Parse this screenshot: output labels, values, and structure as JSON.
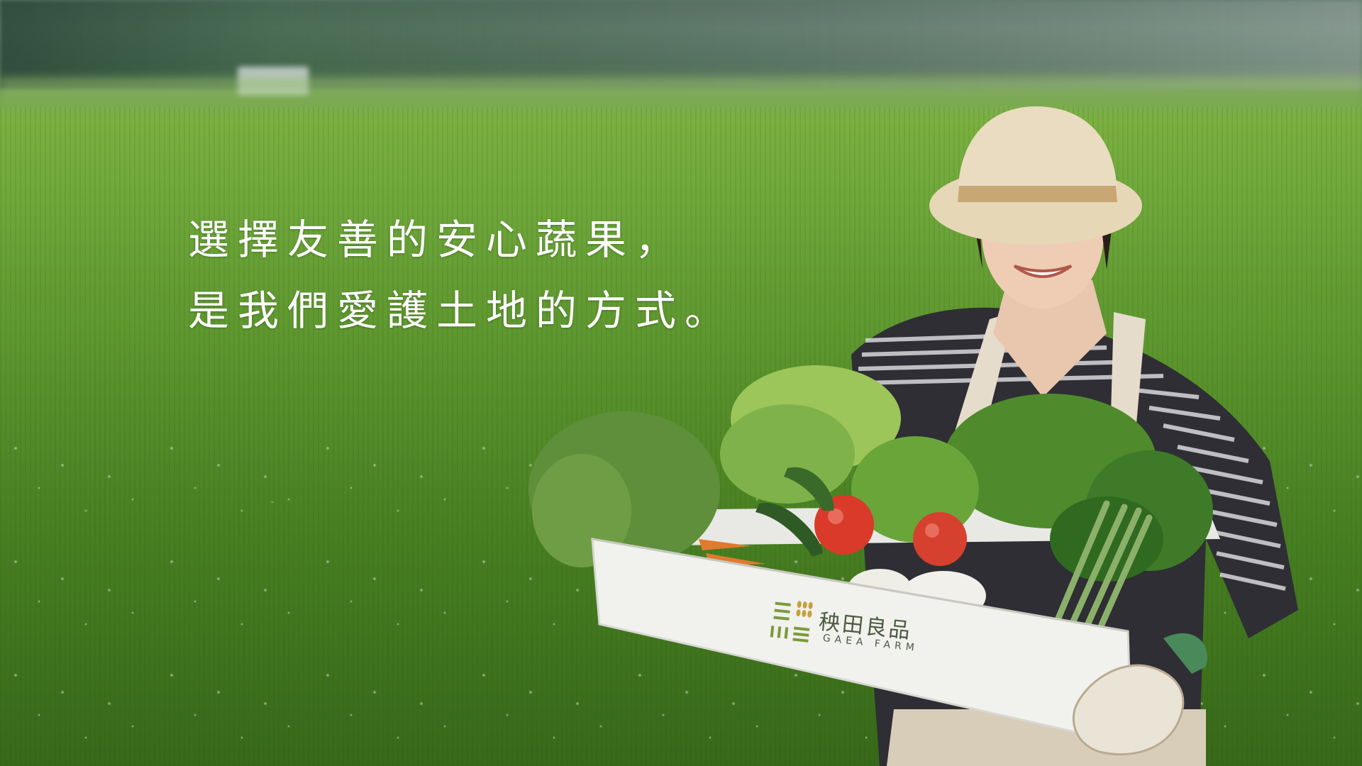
{
  "hero": {
    "headline_line1": "選擇友善的安心蔬果，",
    "headline_line2": "是我們愛護土地的方式。"
  },
  "brand": {
    "name_zh": "秧田良品",
    "name_en": "GAEA FARM",
    "accent_color": "#7a9a3a",
    "text_color": "#4a5a40"
  },
  "colors": {
    "grass": "#5f9a2e",
    "headline": "#ffffff"
  }
}
